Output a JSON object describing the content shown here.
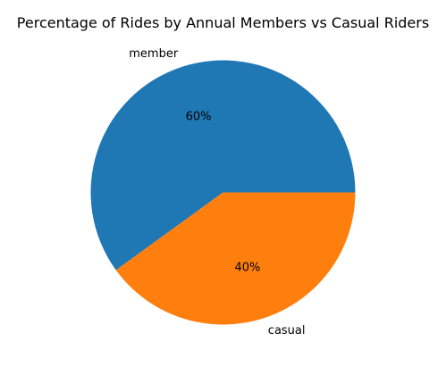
{
  "chart_data": {
    "type": "pie",
    "title": "Percentage of Rides by Annual Members vs Casual Riders",
    "slices": [
      {
        "label": "member",
        "value": 60,
        "pct_label": "60%",
        "color": "#1f77b4"
      },
      {
        "label": "casual",
        "value": 40,
        "pct_label": "40%",
        "color": "#ff7f0e"
      }
    ],
    "start_angle_deg": 0,
    "direction": "counterclockwise",
    "legend": "none"
  }
}
